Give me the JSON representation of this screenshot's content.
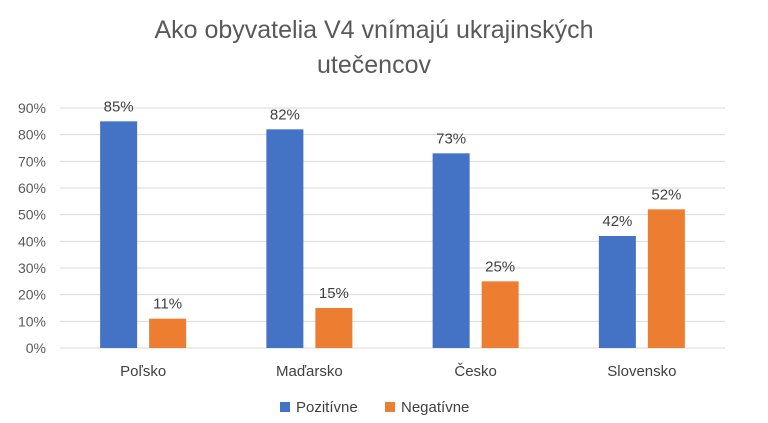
{
  "chart_data": {
    "type": "bar",
    "title_lines": [
      "Ako obyvatelia V4 vnímajú ukrajinských",
      "utečencov"
    ],
    "categories": [
      "Poľsko",
      "Maďarsko",
      "Česko",
      "Slovensko"
    ],
    "series": [
      {
        "name": "Pozitívne",
        "color": "#4472c4",
        "values": [
          85,
          82,
          73,
          42
        ],
        "labels": [
          "85%",
          "82%",
          "73%",
          "42%"
        ]
      },
      {
        "name": "Negatívne",
        "color": "#ed7d31",
        "values": [
          11,
          15,
          25,
          52
        ],
        "labels": [
          "11%",
          "15%",
          "25%",
          "52%"
        ]
      }
    ],
    "ylim": [
      0,
      90
    ],
    "yticks": [
      0,
      10,
      20,
      30,
      40,
      50,
      60,
      70,
      80,
      90
    ],
    "ytick_labels": [
      "0%",
      "10%",
      "20%",
      "30%",
      "40%",
      "50%",
      "60%",
      "70%",
      "80%",
      "90%"
    ],
    "grid": true,
    "legend_position": "bottom",
    "xlabel": "",
    "ylabel": ""
  }
}
